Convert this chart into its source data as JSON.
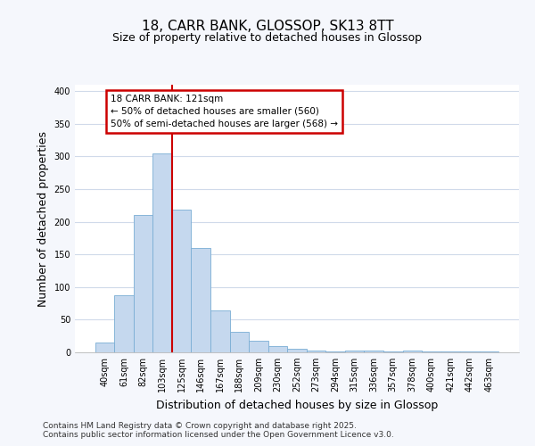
{
  "title_line1": "18, CARR BANK, GLOSSOP, SK13 8TT",
  "title_line2": "Size of property relative to detached houses in Glossop",
  "xlabel": "Distribution of detached houses by size in Glossop",
  "ylabel": "Number of detached properties",
  "bar_color": "#c5d8ee",
  "bar_edge_color": "#7aadd4",
  "categories": [
    "40sqm",
    "61sqm",
    "82sqm",
    "103sqm",
    "125sqm",
    "146sqm",
    "167sqm",
    "188sqm",
    "209sqm",
    "230sqm",
    "252sqm",
    "273sqm",
    "294sqm",
    "315sqm",
    "336sqm",
    "357sqm",
    "378sqm",
    "400sqm",
    "421sqm",
    "442sqm",
    "463sqm"
  ],
  "values": [
    15,
    88,
    211,
    305,
    218,
    160,
    64,
    32,
    18,
    10,
    6,
    3,
    2,
    3,
    3,
    2,
    3,
    1,
    2,
    1,
    2
  ],
  "vline_position": 3.5,
  "vline_color": "#cc0000",
  "annotation_line1": "18 CARR BANK: 121sqm",
  "annotation_line2": "← 50% of detached houses are smaller (560)",
  "annotation_line3": "50% of semi-detached houses are larger (568) →",
  "annotation_box_facecolor": "#ffffff",
  "annotation_box_edgecolor": "#cc0000",
  "ylim_max": 410,
  "yticks": [
    0,
    50,
    100,
    150,
    200,
    250,
    300,
    350,
    400
  ],
  "footer_line1": "Contains HM Land Registry data © Crown copyright and database right 2025.",
  "footer_line2": "Contains public sector information licensed under the Open Government Licence v3.0.",
  "background_color": "#f5f7fc",
  "plot_bg_color": "#ffffff",
  "grid_color": "#d0daea",
  "title_fontsize": 11,
  "subtitle_fontsize": 9,
  "axis_label_fontsize": 9,
  "tick_fontsize": 7,
  "footer_fontsize": 6.5
}
